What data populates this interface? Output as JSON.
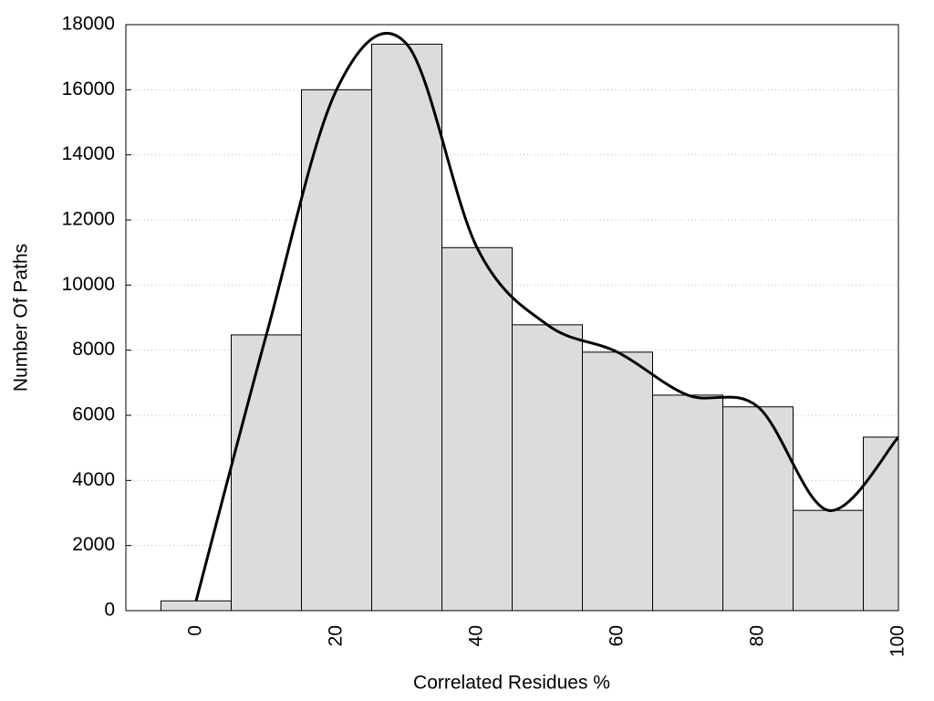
{
  "chart_data": {
    "type": "histogram",
    "x_label": "Correlated Residues %",
    "y_label": "Number Of Paths",
    "bins": [
      -5,
      5,
      15,
      25,
      35,
      45,
      55,
      65,
      75,
      85,
      95,
      105
    ],
    "values": [
      300,
      8470,
      16000,
      17400,
      11150,
      8780,
      7940,
      6620,
      6260,
      3080,
      5330
    ],
    "color": "#dcdcdc",
    "overlay": {
      "type": "line",
      "color": "#000000",
      "x": [
        0,
        10,
        20,
        30,
        40,
        50,
        60,
        70,
        80,
        90,
        100
      ],
      "values": [
        300,
        8470,
        16000,
        17400,
        11150,
        8780,
        7940,
        6620,
        6260,
        3080,
        5330
      ]
    },
    "xlim": [
      -10,
      100
    ],
    "xticks": [
      0,
      20,
      40,
      60,
      80,
      100
    ],
    "ylim": [
      0,
      18000
    ],
    "yticks": [
      0,
      2000,
      4000,
      6000,
      8000,
      10000,
      12000,
      14000,
      16000,
      18000
    ],
    "grid": true
  }
}
